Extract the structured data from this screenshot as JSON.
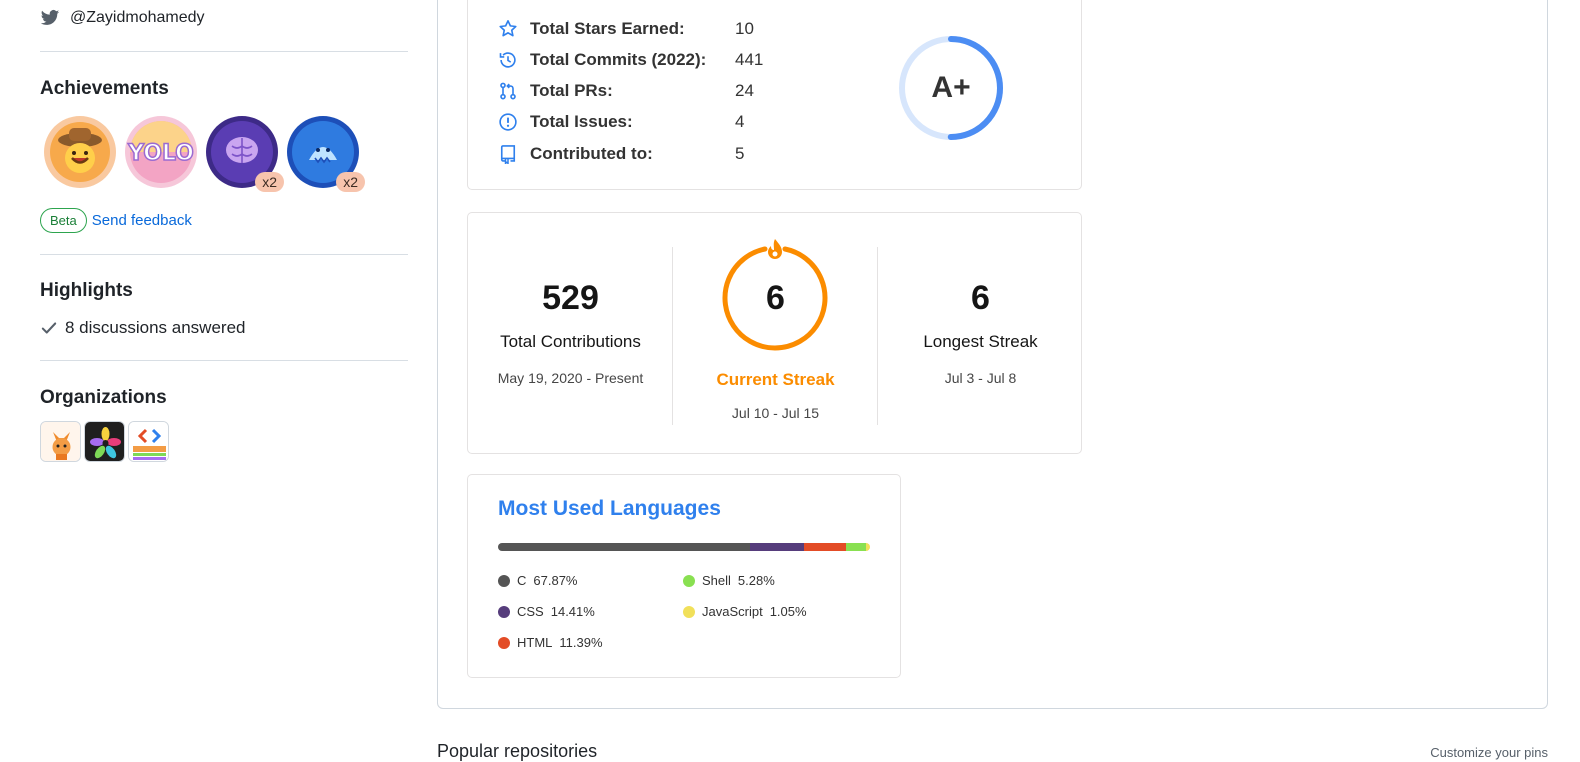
{
  "sidebar": {
    "twitter_handle": "@Zayidmohamedy",
    "achievements": {
      "title": "Achievements",
      "badges": [
        {
          "name": "cowboy-badge",
          "count": ""
        },
        {
          "name": "yolo-badge",
          "count": ""
        },
        {
          "name": "galaxy-brain-badge",
          "count": "x2"
        },
        {
          "name": "shark-badge",
          "count": "x2"
        }
      ],
      "beta_label": "Beta",
      "feedback_label": "Send feedback"
    },
    "highlights": {
      "title": "Highlights",
      "items": [
        "8 discussions answered"
      ]
    },
    "organizations": {
      "title": "Organizations",
      "items": [
        "fox-org",
        "star-org",
        "zayidtech-org"
      ]
    }
  },
  "stats": {
    "rows": [
      {
        "icon": "star-icon",
        "label": "Total Stars Earned:",
        "value": "10"
      },
      {
        "icon": "history-icon",
        "label": "Total Commits (2022):",
        "value": "441"
      },
      {
        "icon": "pull-request-icon",
        "label": "Total PRs:",
        "value": "24"
      },
      {
        "icon": "issue-icon",
        "label": "Total Issues:",
        "value": "4"
      },
      {
        "icon": "repo-icon",
        "label": "Contributed to:",
        "value": "5"
      }
    ],
    "grade": "A+",
    "grade_progress": 0.5,
    "ring_color": "#4c8df3"
  },
  "streak": {
    "total": {
      "value": "529",
      "label": "Total Contributions",
      "range": "May 19, 2020 - Present"
    },
    "current": {
      "value": "6",
      "label": "Current Streak",
      "range": "Jul 10 - Jul 15"
    },
    "longest": {
      "value": "6",
      "label": "Longest Streak",
      "range": "Jul 3 - Jul 8"
    },
    "accent_color": "#fb8c00"
  },
  "languages": {
    "title": "Most Used Languages",
    "items": [
      {
        "name": "C",
        "percent": "67.87%",
        "value": 67.87,
        "color": "#555555"
      },
      {
        "name": "CSS",
        "percent": "14.41%",
        "value": 14.41,
        "color": "#563d7c"
      },
      {
        "name": "HTML",
        "percent": "11.39%",
        "value": 11.39,
        "color": "#e34c26"
      },
      {
        "name": "Shell",
        "percent": "5.28%",
        "value": 5.28,
        "color": "#89e051"
      },
      {
        "name": "JavaScript",
        "percent": "1.05%",
        "value": 1.05,
        "color": "#f1e05a"
      }
    ]
  },
  "footer": {
    "popular_repos": "Popular repositories",
    "customize": "Customize your pins"
  }
}
